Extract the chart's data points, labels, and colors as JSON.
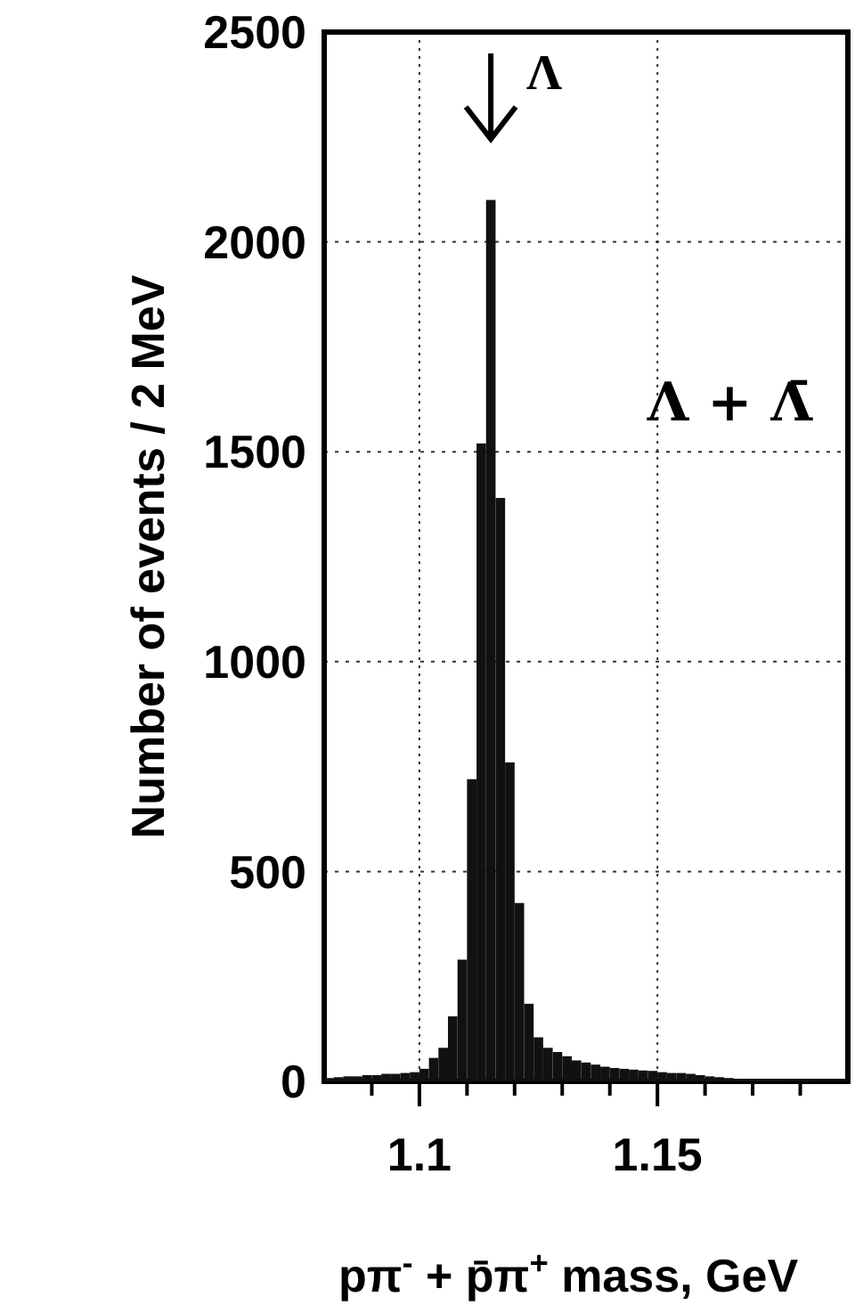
{
  "chart_data": {
    "type": "histogram",
    "xlabel": "pπ$^{-}$ + p̄π$^{+}$ mass, GeV",
    "ylabel": "Number of events / 2 MeV",
    "bins": [
      1.08,
      1.082,
      1.084,
      1.086,
      1.088,
      1.09,
      1.092,
      1.094,
      1.096,
      1.098,
      1.1,
      1.102,
      1.104,
      1.106,
      1.108,
      1.11,
      1.112,
      1.114,
      1.116,
      1.118,
      1.12,
      1.122,
      1.124,
      1.126,
      1.128,
      1.13,
      1.132,
      1.134,
      1.136,
      1.138,
      1.14,
      1.142,
      1.144,
      1.146,
      1.148,
      1.15,
      1.152,
      1.154,
      1.156,
      1.158,
      1.16,
      1.162,
      1.164,
      1.166,
      1.168,
      1.17,
      1.172,
      1.174,
      1.176,
      1.178,
      1.18,
      1.182,
      1.184,
      1.186,
      1.188,
      1.19
    ],
    "values": [
      8,
      10,
      12,
      12,
      15,
      15,
      18,
      18,
      20,
      22,
      30,
      56,
      80,
      155,
      290,
      720,
      1520,
      2100,
      1390,
      760,
      425,
      185,
      105,
      80,
      70,
      60,
      50,
      45,
      40,
      35,
      32,
      30,
      28,
      26,
      25,
      22,
      20,
      20,
      18,
      15,
      12,
      10,
      8,
      6,
      5,
      5,
      4,
      4,
      3,
      3,
      3,
      2,
      2,
      2,
      2
    ],
    "color": "#111111",
    "xlim": [
      1.08,
      1.19
    ],
    "xticks": [
      {
        "value": 1.09,
        "label": null
      },
      1.1,
      {
        "value": 1.11,
        "label": null
      },
      {
        "value": 1.12,
        "label": null
      },
      {
        "value": 1.13,
        "label": null
      },
      {
        "value": 1.14,
        "label": null
      },
      1.15,
      {
        "value": 1.16,
        "label": null
      },
      {
        "value": 1.17,
        "label": null
      },
      {
        "value": 1.18,
        "label": null
      }
    ],
    "ylim": [
      0,
      2500
    ],
    "yticks": [
      0,
      500,
      1000,
      1500,
      2000,
      2500
    ],
    "grid": true,
    "annotations": [
      "Λ",
      "Λ + Λ̄"
    ]
  }
}
